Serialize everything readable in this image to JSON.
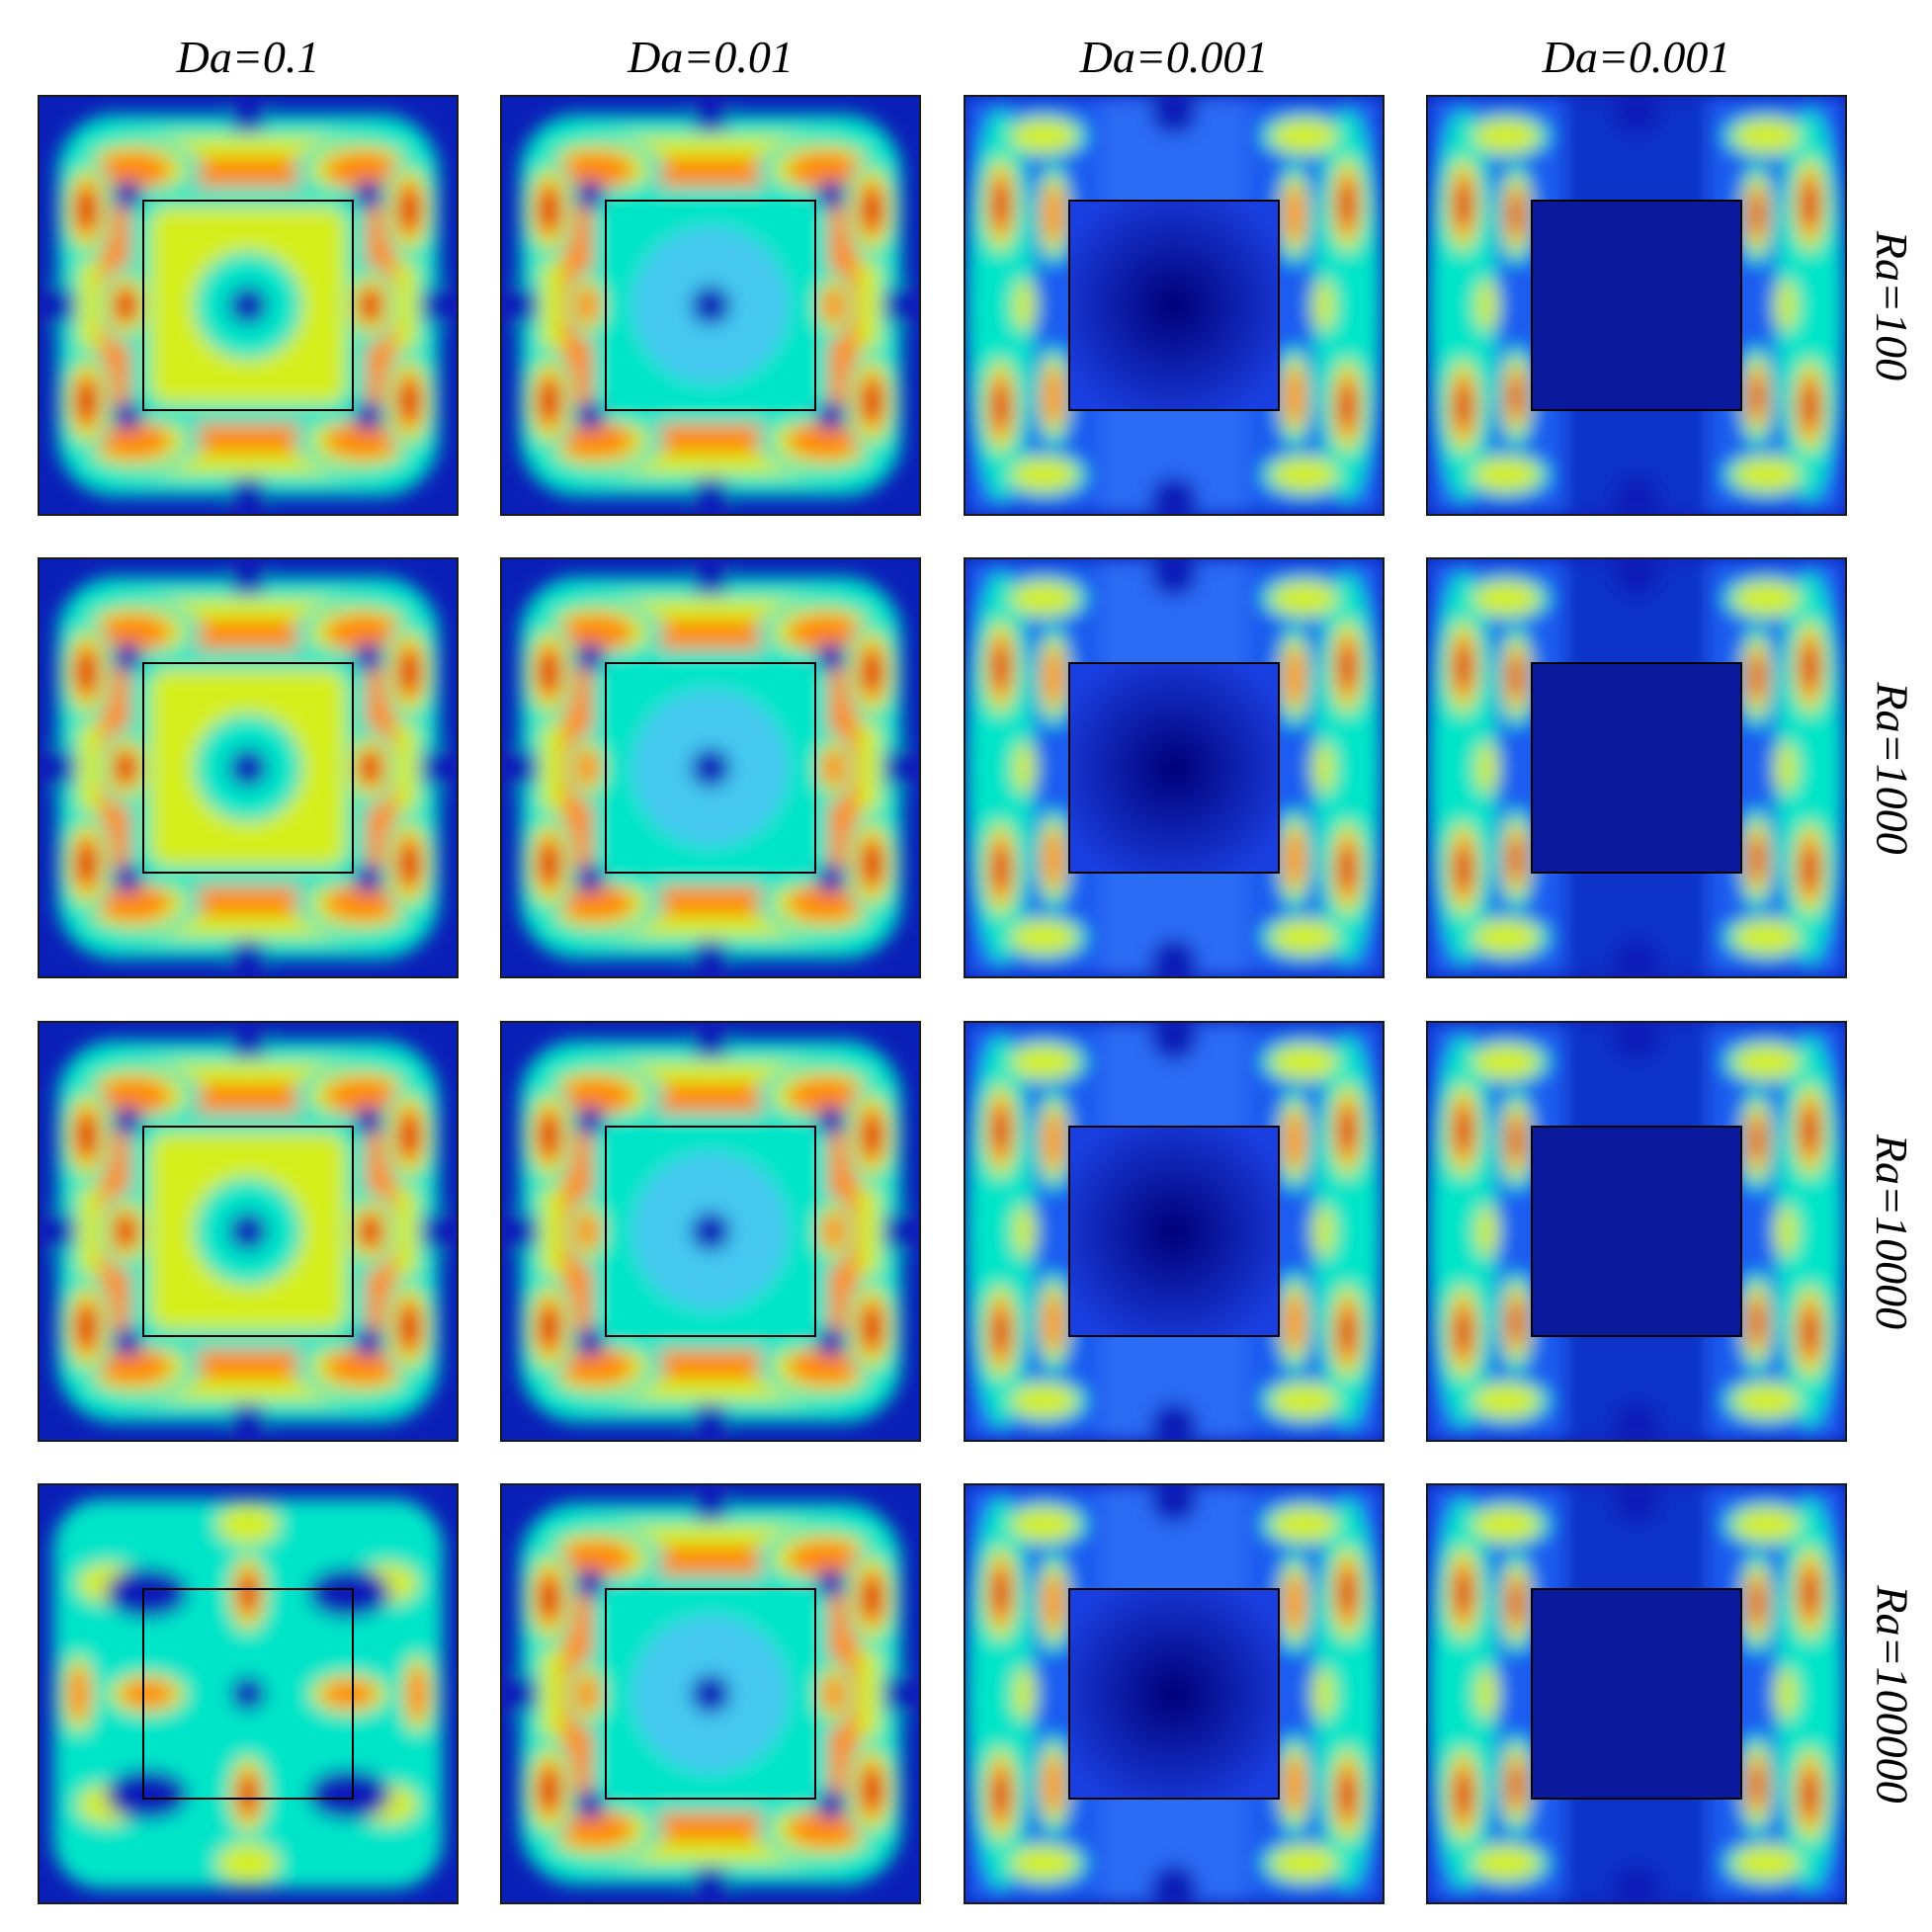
{
  "columns": [
    {
      "label": "Da=0.1"
    },
    {
      "label": "Da=0.01"
    },
    {
      "label": "Da=0.001"
    },
    {
      "label": "Da=0.001"
    }
  ],
  "rows": [
    {
      "label": "Ra=100"
    },
    {
      "label": "Ra=1000"
    },
    {
      "label": "Ra=10000"
    },
    {
      "label": "Ra=100000"
    }
  ],
  "colors": {
    "background": "#00008b",
    "low": "#0a1fb8",
    "cyan": "#00e5c8",
    "yellow": "#d4ee1a",
    "orange": "#ff8a00",
    "red": "#d80000",
    "inner_frame": "#000000"
  },
  "panel_styles": [
    [
      "uniform",
      "center-blue",
      "porous",
      "dark-core"
    ],
    [
      "uniform",
      "center-blue",
      "porous",
      "dark-core"
    ],
    [
      "uniform",
      "center-blue",
      "porous",
      "dark-core"
    ],
    [
      "cellular",
      "center-blue",
      "porous",
      "dark-core"
    ]
  ]
}
